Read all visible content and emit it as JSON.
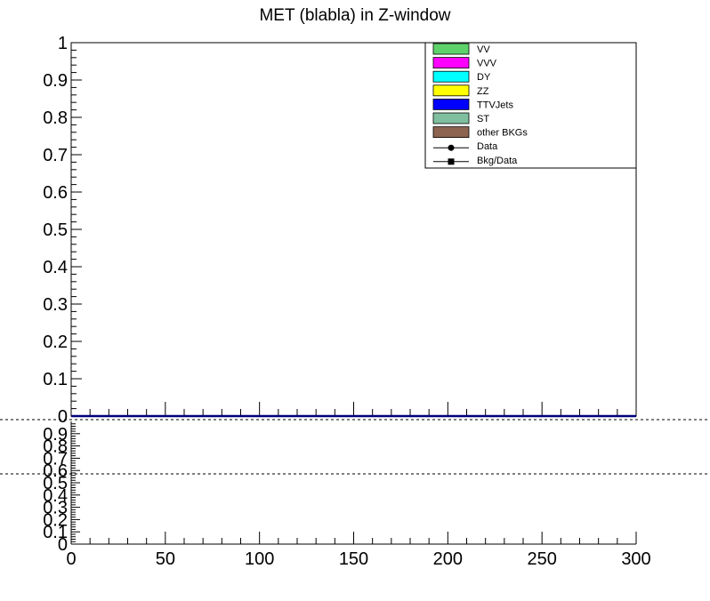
{
  "chart_data": [
    {
      "type": "area",
      "title": "MET (blabla) in Z-window",
      "xlim": [
        0,
        300
      ],
      "ylim": [
        0,
        1
      ],
      "y_ticks": [
        "0",
        "0.1",
        "0.2",
        "0.3",
        "0.4",
        "0.5",
        "0.6",
        "0.7",
        "0.8",
        "0.9",
        "1"
      ],
      "grid": false,
      "legend_position": "top-right",
      "legend": [
        {
          "label": "VV",
          "color": "#5dd26b",
          "kind": "box"
        },
        {
          "label": "VVV",
          "color": "#ff00ff",
          "kind": "box"
        },
        {
          "label": "DY",
          "color": "#00ffff",
          "kind": "box"
        },
        {
          "label": "ZZ",
          "color": "#ffff00",
          "kind": "box"
        },
        {
          "label": "TTVJets",
          "color": "#0000ff",
          "kind": "box"
        },
        {
          "label": "ST",
          "color": "#7fbf9f",
          "kind": "box"
        },
        {
          "label": "other BKGs",
          "color": "#8c6450",
          "kind": "box"
        },
        {
          "label": "Data",
          "color": "#000000",
          "kind": "circle"
        },
        {
          "label": "Bkg/Data",
          "color": "#000000",
          "kind": "square"
        }
      ],
      "series_values": [
        0
      ]
    },
    {
      "type": "line",
      "name": "ratio",
      "xlim": [
        0,
        300
      ],
      "ylim": [
        0,
        1
      ],
      "x_ticks": [
        "0",
        "50",
        "100",
        "150",
        "200",
        "250",
        "300"
      ],
      "y_ticks": [
        "0",
        "0.1",
        "0.2",
        "0.3",
        "0.4",
        "0.5",
        "0.6",
        "0.7",
        "0.8",
        "0.9"
      ]
    }
  ]
}
